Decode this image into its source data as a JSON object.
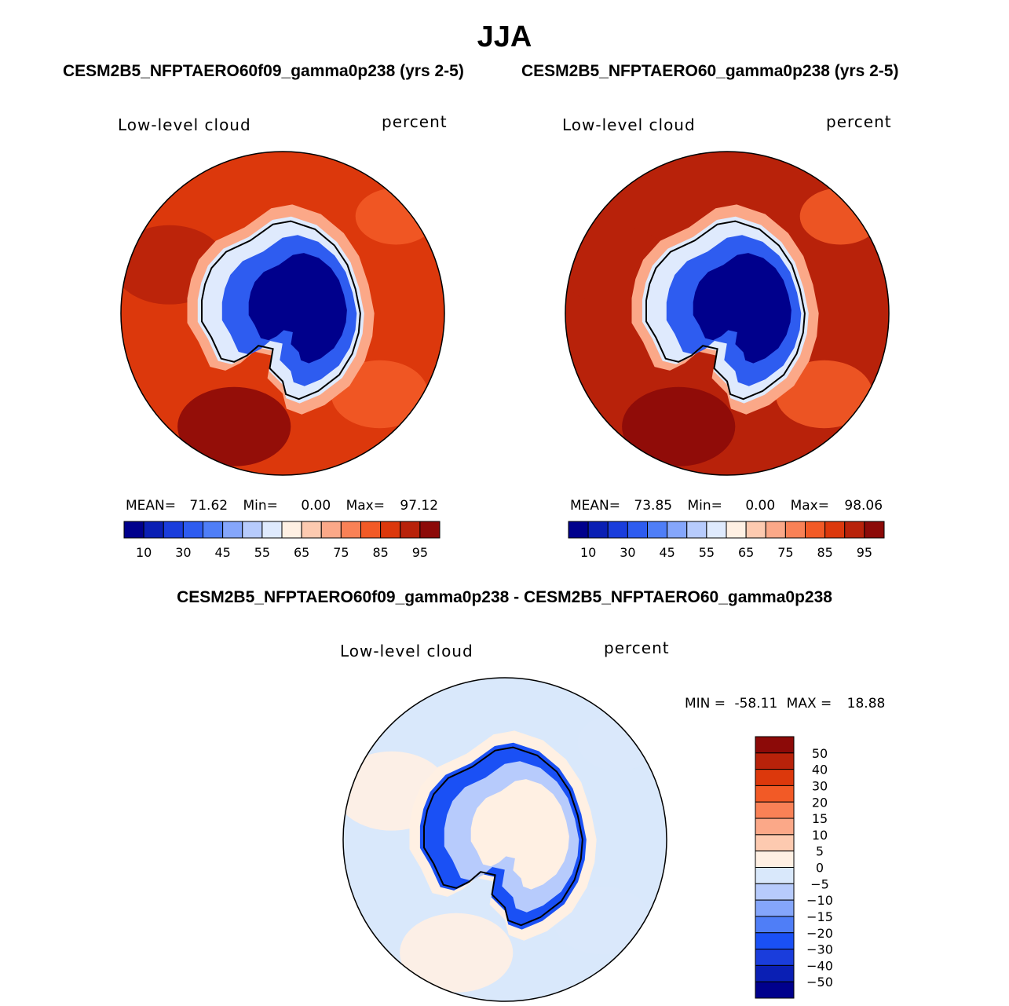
{
  "page": {
    "season": "JJA",
    "diff_title": "CESM2B5_NFPTAERO60f09_gamma0p238 - CESM2B5_NFPTAERO60_gamma0p238"
  },
  "chart_data": [
    {
      "type": "heatmap",
      "projection": "south-polar-stereographic",
      "title": "CESM2B5_NFPTAERO60f09_gamma0p238 (yrs 2-5)",
      "variable": "Low-level cloud",
      "units": "percent",
      "stats": {
        "mean_label": "MEAN=",
        "mean": "71.62",
        "min_label": "Min=",
        "min": "0.00",
        "max_label": "Max=",
        "max": "97.12"
      },
      "colorbar": {
        "orientation": "horizontal",
        "levels": [
          5,
          10,
          20,
          30,
          40,
          45,
          50,
          55,
          60,
          65,
          70,
          75,
          80,
          85,
          90,
          95
        ],
        "tick_labels": [
          "10",
          "30",
          "45",
          "55",
          "65",
          "75",
          "85",
          "95"
        ],
        "colors": [
          "#00008c",
          "#0a1fb4",
          "#1a3ddc",
          "#2e5cf0",
          "#4f7ef7",
          "#85a6fb",
          "#b7cbfc",
          "#dfeafd",
          "#fff0e3",
          "#fdcab0",
          "#fba888",
          "#f98156",
          "#f25a26",
          "#dc380c",
          "#b8220a",
          "#8c0a08"
        ]
      },
      "field": {
        "ocean_level": 85,
        "antarctic_interior_level": 5,
        "coast_level": 55
      }
    },
    {
      "type": "heatmap",
      "projection": "south-polar-stereographic",
      "title": "CESM2B5_NFPTAERO60_gamma0p238 (yrs 2-5)",
      "variable": "Low-level cloud",
      "units": "percent",
      "stats": {
        "mean_label": "MEAN=",
        "mean": "73.85",
        "min_label": "Min=",
        "min": "0.00",
        "max_label": "Max=",
        "max": "98.06"
      },
      "colorbar": {
        "orientation": "horizontal",
        "levels": [
          5,
          10,
          20,
          30,
          40,
          45,
          50,
          55,
          60,
          65,
          70,
          75,
          80,
          85,
          90,
          95
        ],
        "tick_labels": [
          "10",
          "30",
          "45",
          "55",
          "65",
          "75",
          "85",
          "95"
        ],
        "colors": [
          "#00008c",
          "#0a1fb4",
          "#1a3ddc",
          "#2e5cf0",
          "#4f7ef7",
          "#85a6fb",
          "#b7cbfc",
          "#dfeafd",
          "#fff0e3",
          "#fdcab0",
          "#fba888",
          "#f98156",
          "#f25a26",
          "#dc380c",
          "#b8220a",
          "#8c0a08"
        ]
      },
      "field": {
        "ocean_level": 88,
        "antarctic_interior_level": 5,
        "coast_level": 55
      }
    },
    {
      "type": "heatmap",
      "projection": "south-polar-stereographic",
      "title": "difference",
      "variable": "Low-level cloud",
      "units": "percent",
      "stats": {
        "min_label": "MIN =",
        "min": "-58.11",
        "max_label": "MAX =",
        "max": "18.88"
      },
      "colorbar": {
        "orientation": "vertical",
        "tick_labels": [
          "50",
          "40",
          "30",
          "20",
          "15",
          "10",
          "5",
          "0",
          "−5",
          "−10",
          "−15",
          "−20",
          "−30",
          "−40",
          "−50"
        ],
        "colors": [
          "#8c0a08",
          "#b8220a",
          "#dc380c",
          "#f25a26",
          "#f98156",
          "#fba888",
          "#fdcab0",
          "#fff0e3",
          "#d9e8fb",
          "#b7cbfc",
          "#85a6fb",
          "#4f7ef7",
          "#1a50f5",
          "#1a3ddc",
          "#0a1fb4",
          "#00008c"
        ]
      },
      "field": {
        "ocean_level": -2,
        "antarctic_interior_level": 2,
        "coast_level": -25
      }
    }
  ]
}
